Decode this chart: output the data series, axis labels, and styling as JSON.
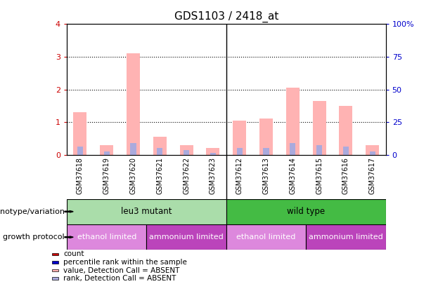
{
  "title": "GDS1103 / 2418_at",
  "samples": [
    "GSM37618",
    "GSM37619",
    "GSM37620",
    "GSM37621",
    "GSM37622",
    "GSM37623",
    "GSM37612",
    "GSM37613",
    "GSM37614",
    "GSM37615",
    "GSM37616",
    "GSM37617"
  ],
  "pink_values": [
    1.3,
    0.3,
    3.1,
    0.55,
    0.3,
    0.2,
    1.05,
    1.1,
    2.05,
    1.65,
    1.5,
    0.3
  ],
  "blue_values": [
    0.25,
    0.1,
    0.35,
    0.2,
    0.15,
    0.05,
    0.2,
    0.2,
    0.35,
    0.3,
    0.25,
    0.1
  ],
  "ylim_left": [
    0,
    4
  ],
  "ylim_right": [
    0,
    100
  ],
  "yticks_left": [
    0,
    1,
    2,
    3,
    4
  ],
  "yticks_right": [
    0,
    25,
    50,
    75,
    100
  ],
  "ytick_labels_right": [
    "0",
    "25",
    "50",
    "75",
    "100%"
  ],
  "pink_color": "#ffb3b3",
  "blue_color": "#aaaadd",
  "dark_red": "#cc0000",
  "dark_blue": "#0000cc",
  "genotype_groups": [
    {
      "label": "leu3 mutant",
      "start": 0,
      "end": 6,
      "color": "#aaddaa"
    },
    {
      "label": "wild type",
      "start": 6,
      "end": 12,
      "color": "#44bb44"
    }
  ],
  "growth_groups": [
    {
      "label": "ethanol limited",
      "start": 0,
      "end": 3,
      "color": "#dd88dd"
    },
    {
      "label": "ammonium limited",
      "start": 3,
      "end": 6,
      "color": "#bb44bb"
    },
    {
      "label": "ethanol limited",
      "start": 6,
      "end": 9,
      "color": "#dd88dd"
    },
    {
      "label": "ammonium limited",
      "start": 9,
      "end": 12,
      "color": "#bb44bb"
    }
  ],
  "legend_items": [
    {
      "label": "count",
      "color": "#cc0000"
    },
    {
      "label": "percentile rank within the sample",
      "color": "#0000cc"
    },
    {
      "label": "value, Detection Call = ABSENT",
      "color": "#ffb3b3"
    },
    {
      "label": "rank, Detection Call = ABSENT",
      "color": "#aaaadd"
    }
  ],
  "genotype_label": "genotype/variation",
  "growth_label": "growth protocol",
  "bg_color": "#cccccc"
}
